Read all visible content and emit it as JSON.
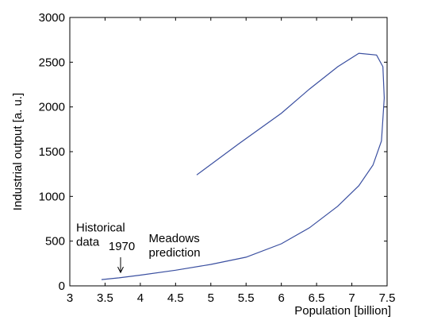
{
  "chart_data": {
    "type": "line",
    "title": "",
    "xlabel": "Population [billion]",
    "ylabel": "Industrial output [a. u.]",
    "xlim": [
      3,
      7.5
    ],
    "ylim": [
      0,
      3000
    ],
    "xticks": [
      3,
      3.5,
      4,
      4.5,
      5,
      5.5,
      6,
      6.5,
      7,
      7.5
    ],
    "xtick_labels": [
      "3",
      "3.5",
      "4",
      "4.5",
      "5",
      "5.5",
      "6",
      "6.5",
      "7",
      "7.5"
    ],
    "yticks": [
      0,
      500,
      1000,
      1500,
      2000,
      2500,
      3000
    ],
    "ytick_labels": [
      "0",
      "500",
      "1000",
      "1500",
      "2000",
      "2500",
      "3000"
    ],
    "grid": false,
    "series": [
      {
        "color": "#3a4fa0",
        "x": [
          3.45,
          3.7,
          4.0,
          4.5,
          5.0,
          5.5,
          6.0,
          6.4,
          6.8,
          7.1,
          7.3,
          7.42,
          7.46,
          7.44,
          7.35,
          7.1,
          6.8,
          6.4,
          6.0,
          5.4,
          4.8
        ],
        "y": [
          70,
          90,
          120,
          175,
          240,
          320,
          470,
          650,
          890,
          1120,
          1350,
          1620,
          2100,
          2450,
          2580,
          2600,
          2450,
          2200,
          1930,
          1590,
          1240
        ]
      }
    ],
    "annotations": [
      {
        "lines": [
          "Historical",
          "data"
        ],
        "x": 3.09,
        "y": 610
      },
      {
        "lines": [
          "1970"
        ],
        "x": 3.55,
        "y": 400
      },
      {
        "lines": [
          "Meadows",
          "prediction"
        ],
        "x": 4.12,
        "y": 490
      }
    ],
    "arrow": {
      "from": [
        3.72,
        320
      ],
      "to": [
        3.72,
        150
      ]
    }
  }
}
